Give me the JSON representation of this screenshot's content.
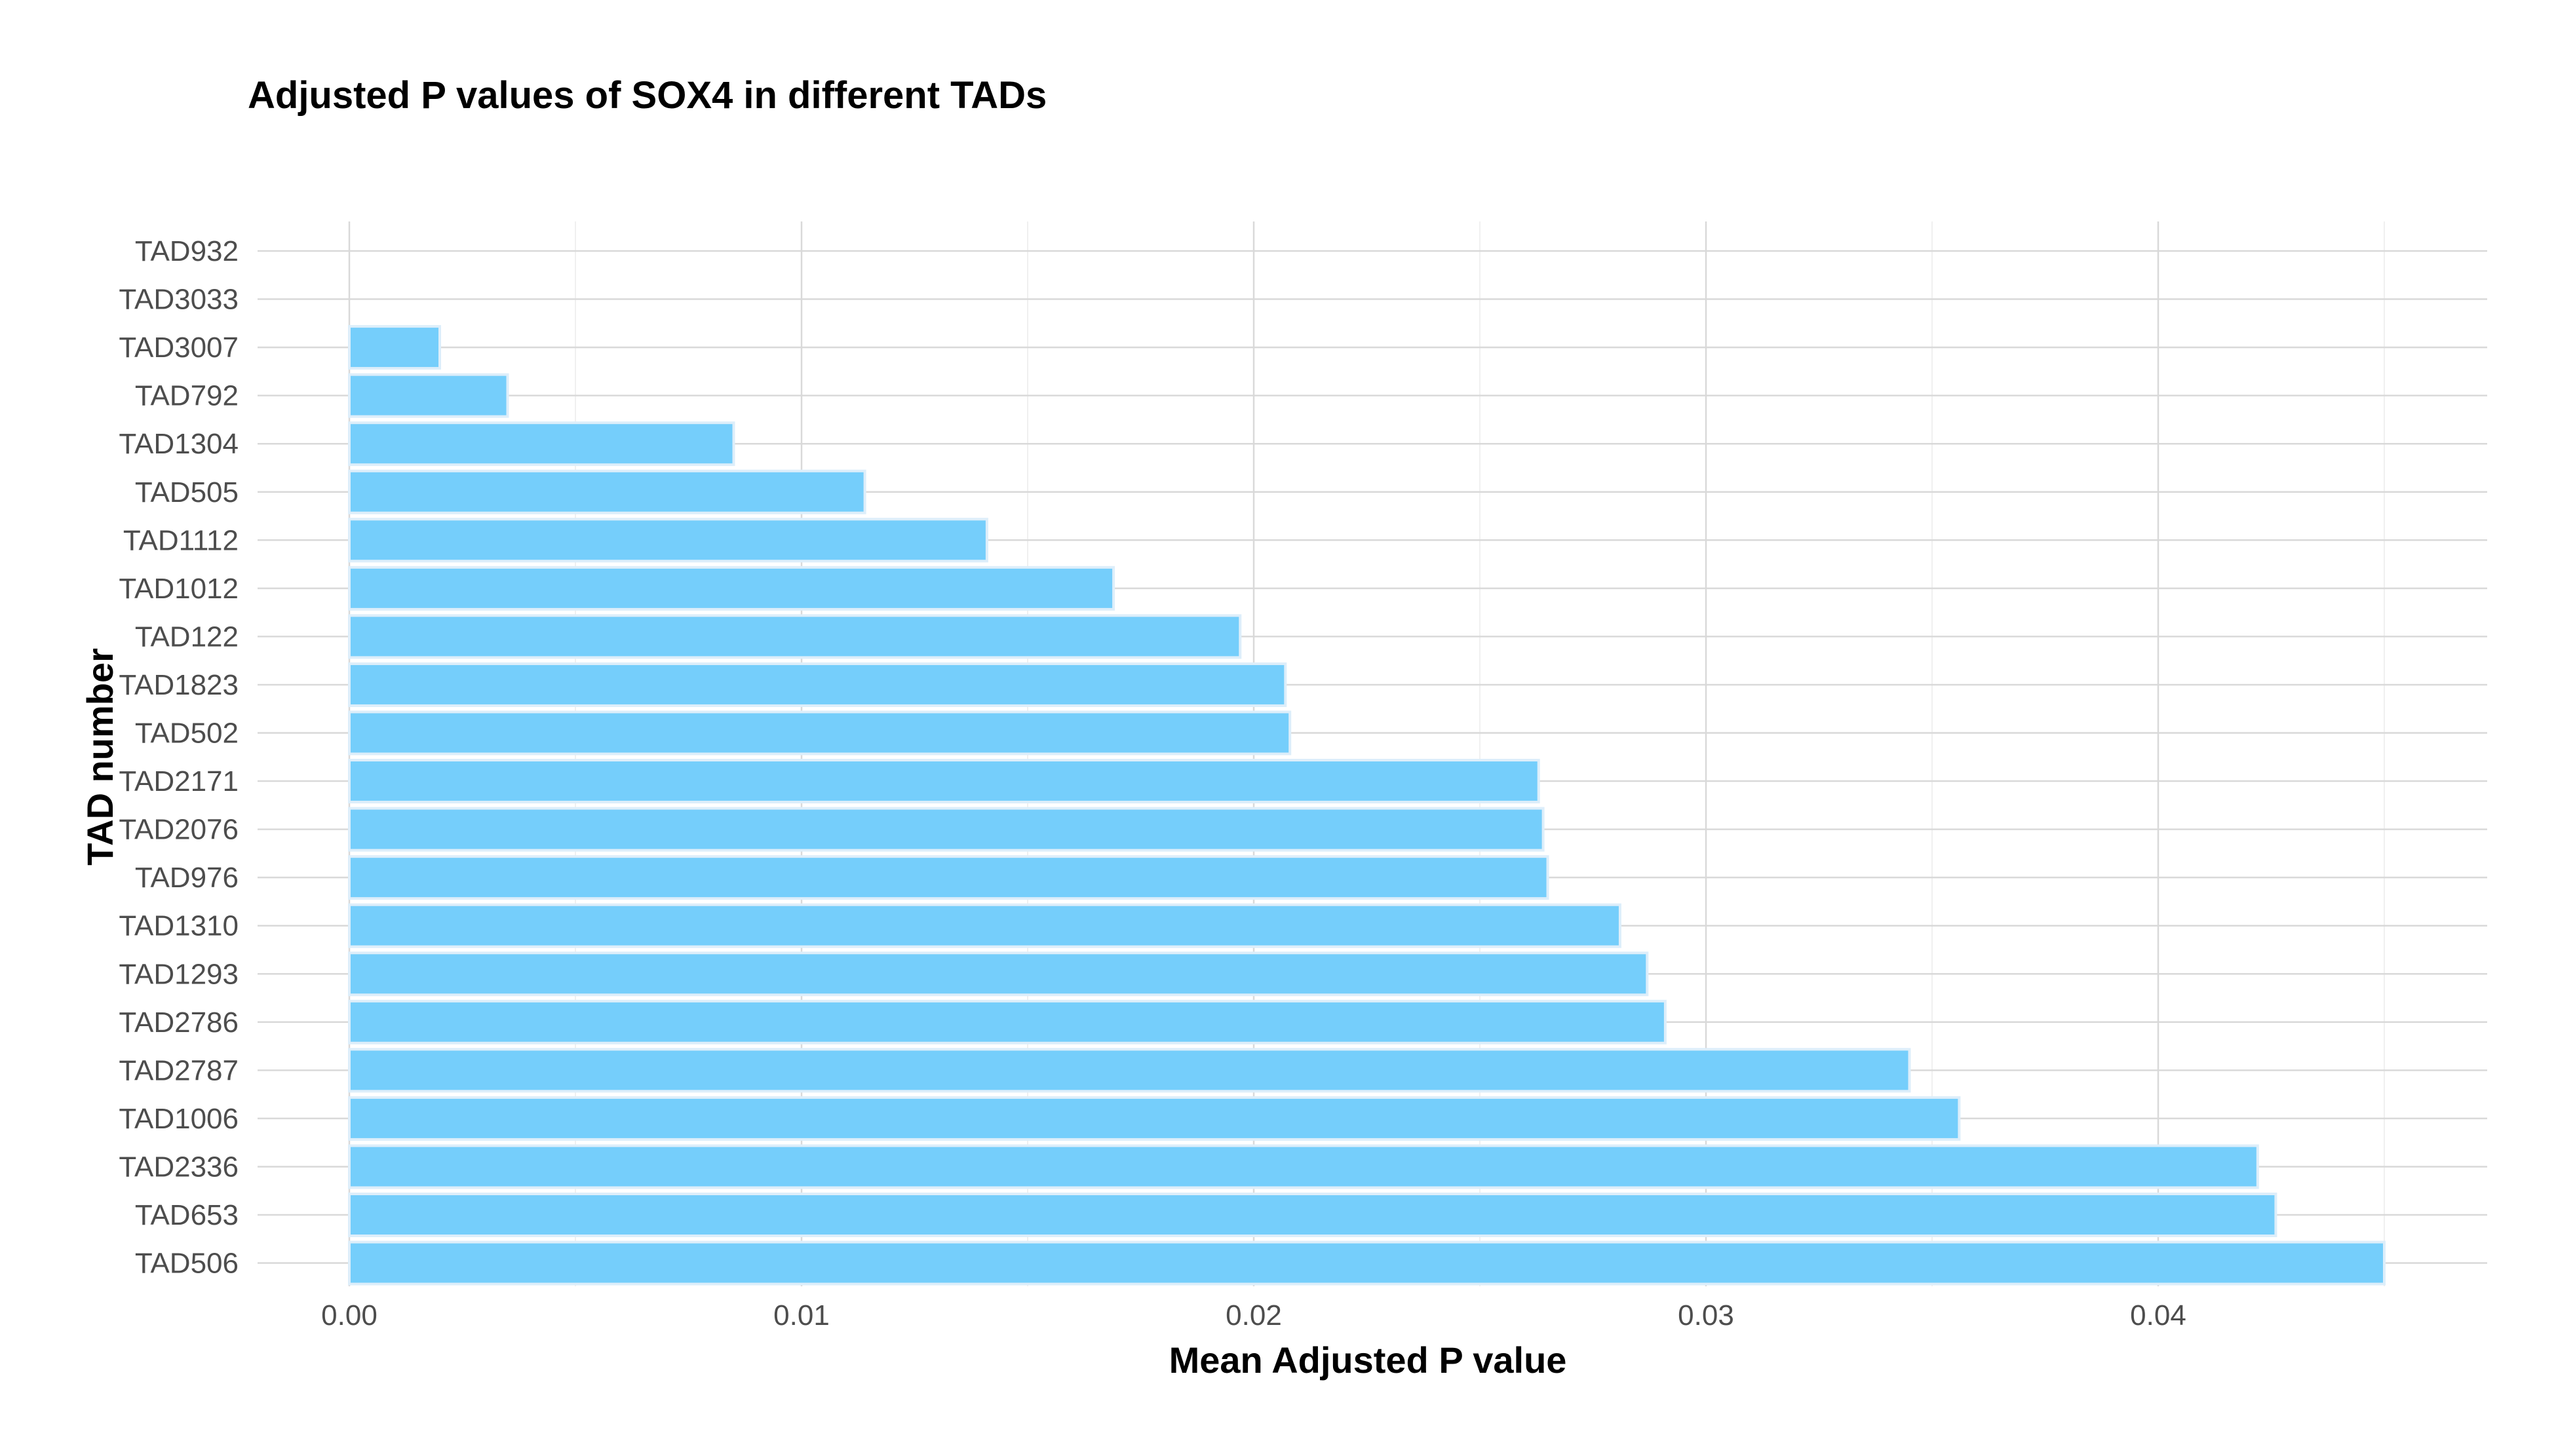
{
  "chart_data": {
    "type": "bar",
    "orientation": "horizontal",
    "title": "Adjusted P values of SOX4 in different TADs",
    "xlabel": "Mean Adjusted P value",
    "ylabel": "TAD number",
    "xlim": [
      0,
      0.0472
    ],
    "x_ticks": [
      0.0,
      0.01,
      0.02,
      0.03,
      0.04
    ],
    "x_tick_labels": [
      "0.00",
      "0.01",
      "0.02",
      "0.03",
      "0.04"
    ],
    "grid": true,
    "legend": "none",
    "bar_color": "#75CEFB",
    "categories": [
      "TAD932",
      "TAD3033",
      "TAD3007",
      "TAD792",
      "TAD1304",
      "TAD505",
      "TAD1112",
      "TAD1012",
      "TAD122",
      "TAD1823",
      "TAD502",
      "TAD2171",
      "TAD2076",
      "TAD976",
      "TAD1310",
      "TAD1293",
      "TAD2786",
      "TAD2787",
      "TAD1006",
      "TAD2336",
      "TAD653",
      "TAD506"
    ],
    "values": [
      0.0,
      0.0,
      0.002,
      0.0035,
      0.0085,
      0.0114,
      0.0141,
      0.0169,
      0.0197,
      0.0207,
      0.0208,
      0.0263,
      0.0264,
      0.0265,
      0.0281,
      0.0287,
      0.0291,
      0.0345,
      0.0356,
      0.0422,
      0.0426,
      0.045
    ]
  }
}
